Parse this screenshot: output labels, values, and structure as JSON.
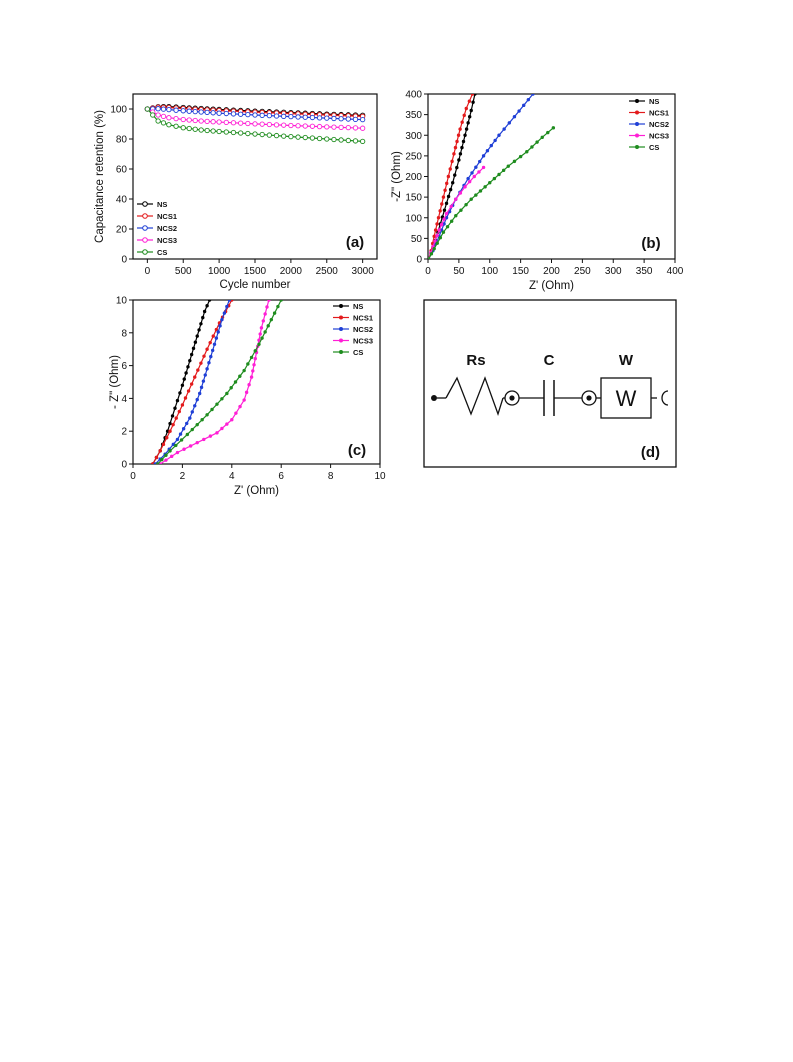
{
  "figure": {
    "panel_labels": [
      "(a)",
      "(b)",
      "(c)",
      "(d)"
    ]
  },
  "chart_data": [
    {
      "panel": "(a)",
      "type": "line",
      "xlabel": "Cycle number",
      "ylabel": "Capacitance retention (%)",
      "xlim": [
        -200,
        3200
      ],
      "ylim": [
        0,
        110
      ],
      "xticks": [
        0,
        500,
        1000,
        1500,
        2000,
        2500,
        3000
      ],
      "yticks": [
        0,
        20,
        40,
        60,
        80,
        100
      ],
      "marker": "open-circle",
      "legend_position": "lower-left",
      "series": [
        {
          "name": "NS",
          "color": "#000000",
          "x": [
            0,
            150,
            300,
            500,
            750,
            1000,
            1500,
            2000,
            2500,
            3000
          ],
          "y": [
            100,
            101.5,
            101.6,
            101.0,
            100.3,
            99.7,
            98.6,
            97.6,
            96.6,
            95.8
          ]
        },
        {
          "name": "NCS1",
          "color": "#e31a1c",
          "x": [
            0,
            150,
            300,
            500,
            750,
            1000,
            1500,
            2000,
            2500,
            3000
          ],
          "y": [
            100,
            101.2,
            101.0,
            100.3,
            99.6,
            99.0,
            97.9,
            96.9,
            96.0,
            95.1
          ]
        },
        {
          "name": "NCS2",
          "color": "#1f3fd6",
          "x": [
            0,
            150,
            300,
            500,
            750,
            1000,
            1500,
            2000,
            2500,
            3000
          ],
          "y": [
            100,
            100.2,
            99.6,
            98.8,
            98.0,
            97.2,
            96.0,
            94.9,
            93.9,
            92.9
          ]
        },
        {
          "name": "NCS3",
          "color": "#ff1fd5",
          "x": [
            0,
            150,
            300,
            500,
            750,
            1000,
            1500,
            2000,
            2500,
            3000
          ],
          "y": [
            100,
            96.0,
            94.2,
            93.0,
            92.0,
            91.3,
            90.1,
            89.0,
            88.1,
            87.2
          ]
        },
        {
          "name": "CS",
          "color": "#1e8c1e",
          "x": [
            0,
            150,
            300,
            500,
            750,
            1000,
            1500,
            2000,
            2500,
            3000
          ],
          "y": [
            100,
            92.0,
            89.5,
            87.5,
            86.0,
            85.0,
            83.3,
            81.6,
            80.0,
            78.4
          ]
        }
      ]
    },
    {
      "panel": "(b)",
      "type": "line",
      "xlabel": "Z' (Ohm)",
      "ylabel": "-Z\" (Ohm)",
      "xlim": [
        0,
        400
      ],
      "ylim": [
        0,
        400
      ],
      "xticks": [
        0,
        50,
        100,
        150,
        200,
        250,
        300,
        350,
        400
      ],
      "yticks": [
        0,
        50,
        100,
        150,
        200,
        250,
        300,
        350,
        400
      ],
      "marker": "filled",
      "legend_position": "top-right",
      "series": [
        {
          "name": "NS",
          "color": "#000000",
          "x": [
            1,
            5,
            12,
            20,
            30,
            40,
            50,
            60,
            70,
            76
          ],
          "y": [
            0,
            15,
            45,
            85,
            135,
            185,
            240,
            300,
            360,
            400
          ]
        },
        {
          "name": "NCS1",
          "color": "#e31a1c",
          "x": [
            1,
            5,
            10,
            17,
            25,
            33,
            42,
            52,
            62,
            72
          ],
          "y": [
            0,
            20,
            55,
            100,
            150,
            200,
            255,
            315,
            365,
            400
          ]
        },
        {
          "name": "NCS2",
          "color": "#1f3fd6",
          "x": [
            1,
            8,
            18,
            30,
            45,
            65,
            90,
            115,
            140,
            170
          ],
          "y": [
            0,
            20,
            55,
            100,
            145,
            195,
            250,
            300,
            345,
            400
          ]
        },
        {
          "name": "NCS3",
          "color": "#ff1fd5",
          "x": [
            1,
            8,
            18,
            30,
            45,
            60,
            75,
            90
          ],
          "y": [
            0,
            30,
            70,
            110,
            145,
            175,
            200,
            222
          ]
        },
        {
          "name": "CS",
          "color": "#1e8c1e",
          "x": [
            1,
            10,
            25,
            45,
            70,
            100,
            130,
            160,
            185,
            203
          ],
          "y": [
            0,
            25,
            65,
            105,
            145,
            185,
            225,
            260,
            295,
            318
          ]
        }
      ]
    },
    {
      "panel": "(c)",
      "type": "line",
      "xlabel": "Z' (Ohm)",
      "ylabel": "- Z\" (Ohm)",
      "xlim": [
        0,
        10
      ],
      "ylim": [
        0,
        10
      ],
      "xticks": [
        0,
        2,
        4,
        6,
        8,
        10
      ],
      "yticks": [
        0,
        2,
        4,
        6,
        8,
        10
      ],
      "marker": "filled",
      "legend_position": "top-right",
      "series": [
        {
          "name": "NS",
          "color": "#000000",
          "x": [
            0.8,
            1.1,
            1.4,
            1.7,
            2.0,
            2.3,
            2.6,
            2.9,
            3.1
          ],
          "y": [
            0,
            0.8,
            2.0,
            3.4,
            4.8,
            6.3,
            7.8,
            9.3,
            10
          ]
        },
        {
          "name": "NCS1",
          "color": "#e31a1c",
          "x": [
            0.8,
            1.1,
            1.5,
            2.0,
            2.5,
            3.0,
            3.5,
            4.0
          ],
          "y": [
            0,
            0.8,
            2.0,
            3.6,
            5.3,
            7.0,
            8.6,
            10
          ]
        },
        {
          "name": "NCS2",
          "color": "#1f3fd6",
          "x": [
            0.9,
            1.3,
            1.8,
            2.3,
            2.7,
            3.0,
            3.3,
            3.6,
            3.9
          ],
          "y": [
            0,
            0.6,
            1.5,
            2.8,
            4.3,
            5.8,
            7.3,
            8.8,
            10
          ]
        },
        {
          "name": "NCS3",
          "color": "#ff1fd5",
          "x": [
            1.1,
            1.8,
            2.6,
            3.4,
            4.0,
            4.5,
            4.8,
            5.0,
            5.2,
            5.5
          ],
          "y": [
            0,
            0.7,
            1.3,
            1.9,
            2.7,
            3.9,
            5.3,
            6.8,
            8.3,
            10
          ]
        },
        {
          "name": "CS",
          "color": "#1e8c1e",
          "x": [
            1.0,
            1.5,
            2.2,
            3.0,
            3.8,
            4.5,
            5.1,
            5.6,
            6.0
          ],
          "y": [
            0,
            0.8,
            1.8,
            3.0,
            4.3,
            5.7,
            7.3,
            8.8,
            10
          ]
        }
      ]
    }
  ],
  "circuit": {
    "panel": "(d)",
    "labels": {
      "resistor": "Rs",
      "capacitor": "C",
      "warburg": "W",
      "warburg_box": "W"
    }
  }
}
